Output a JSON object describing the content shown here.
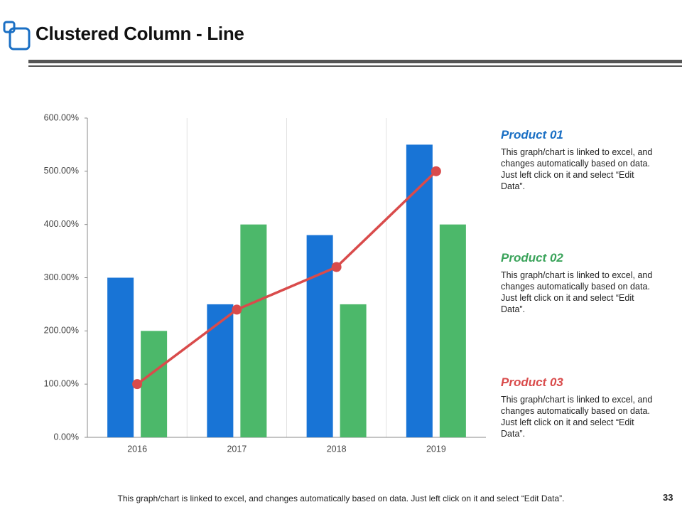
{
  "header": {
    "title": "Clustered Column - Line"
  },
  "chart_data": {
    "type": "combo",
    "categories": [
      "2016",
      "2017",
      "2018",
      "2019"
    ],
    "series": [
      {
        "name": "Product 01",
        "type": "bar",
        "color": "#1874d6",
        "values": [
          300,
          250,
          380,
          550
        ]
      },
      {
        "name": "Product 02",
        "type": "bar",
        "color": "#4cb86a",
        "values": [
          200,
          400,
          250,
          400
        ]
      },
      {
        "name": "Product 03",
        "type": "line",
        "color": "#d94b4b",
        "values": [
          100,
          240,
          320,
          500
        ]
      }
    ],
    "ylim": [
      0,
      600
    ],
    "yticks": [
      {
        "value": 0,
        "label": "0.00%"
      },
      {
        "value": 100,
        "label": "100.00%"
      },
      {
        "value": 200,
        "label": "200.00%"
      },
      {
        "value": 300,
        "label": "300.00%"
      },
      {
        "value": 400,
        "label": "400.00%"
      },
      {
        "value": 500,
        "label": "500.00%"
      },
      {
        "value": 600,
        "label": "600.00%"
      }
    ],
    "grid": false
  },
  "notes": [
    "This graph/chart is linked to excel, and changes automatically based on data. Just left click on it and select “Edit Data”.",
    "This graph/chart is linked to excel, and changes automatically based on data. Just left click on it and select “Edit Data”.",
    "This graph/chart is linked to excel, and changes automatically based on data. Just left click on it and select “Edit Data”."
  ],
  "footer": {
    "text": "This graph/chart is linked to excel, and changes automatically based on data. Just left click on it and select “Edit Data”.",
    "page_number": "33"
  }
}
